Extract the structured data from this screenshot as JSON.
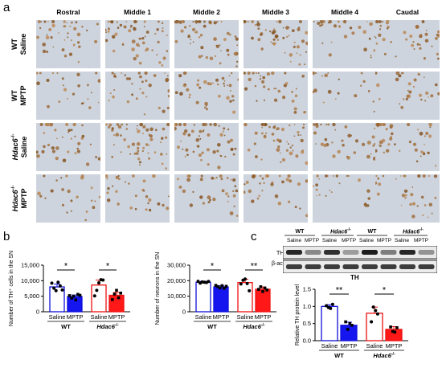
{
  "panel_a": {
    "letter": "a",
    "columns": [
      "Rostral",
      "Middle 1",
      "Middle 2",
      "Middle 3",
      "Middle 4",
      "Caudal"
    ],
    "rows": [
      {
        "line1": "WT",
        "line2": "Saline"
      },
      {
        "line1": "WT",
        "line2": "MPTP"
      },
      {
        "line1": "Hdac6",
        "sup": "-/-",
        "line2": "Saline"
      },
      {
        "line1": "Hdac6",
        "sup": "-/-",
        "line2": "MPTP"
      }
    ]
  },
  "panel_b": {
    "letter": "b"
  },
  "panel_c": {
    "letter": "c",
    "wb_groups": [
      {
        "name": "WT",
        "sup": ""
      },
      {
        "name": "Hdac6",
        "sup": "-/-"
      },
      {
        "name": "WT",
        "sup": ""
      },
      {
        "name": "Hdac6",
        "sup": "-/-"
      }
    ],
    "wb_lanes": [
      "Saline",
      "MPTP",
      "Saline",
      "MPTP",
      "Saline",
      "MPTP",
      "Saline",
      "MPTP"
    ],
    "wb_bands": [
      "TH",
      "β-actin"
    ],
    "wb_caption": "TH"
  },
  "chart_data": [
    {
      "type": "bar",
      "ylabel": "Number of TH⁺ cells in the SN",
      "ylim": [
        0,
        15000
      ],
      "yticks": [
        "0",
        "5,000",
        "10,000",
        "15,000"
      ],
      "categories": [
        "Saline",
        "MPTP",
        "Saline",
        "MPTP"
      ],
      "groups": [
        {
          "name": "WT",
          "sup": ""
        },
        {
          "name": "Hdac6",
          "sup": "-/-"
        }
      ],
      "values": [
        8000,
        4900,
        8600,
        5300
      ],
      "errors": [
        900,
        500,
        1600,
        900
      ],
      "points": [
        [
          9200,
          7600,
          6800,
          9500,
          8300,
          7000
        ],
        [
          5200,
          4400,
          5000,
          3800,
          5600,
          5300
        ],
        [
          5100,
          6900,
          9300,
          10300,
          10200
        ],
        [
          3900,
          5700,
          6900,
          4500,
          6000
        ]
      ],
      "significance": [
        {
          "pair": [
            0,
            1
          ],
          "label": "*"
        },
        {
          "pair": [
            2,
            3
          ],
          "label": "*"
        }
      ]
    },
    {
      "type": "bar",
      "ylabel": "Number of neurons in the SN",
      "ylim": [
        0,
        30000
      ],
      "yticks": [
        "0",
        "10,000",
        "20,000",
        "30,000"
      ],
      "categories": [
        "Saline",
        "MPTP",
        "Saline",
        "MPTP"
      ],
      "groups": [
        {
          "name": "WT",
          "sup": ""
        },
        {
          "name": "Hdac6",
          "sup": "-/-"
        }
      ],
      "values": [
        19000,
        16000,
        18800,
        14500
      ],
      "errors": [
        600,
        700,
        2100,
        1500
      ],
      "points": [
        [
          19600,
          18400,
          19200,
          19000,
          18800,
          19500
        ],
        [
          17000,
          16200,
          15300,
          16800,
          15100,
          16400
        ],
        [
          17900,
          20300,
          21100,
          18200,
          13500
        ],
        [
          14400,
          16100,
          13000,
          15300,
          14000
        ]
      ],
      "significance": [
        {
          "pair": [
            0,
            1
          ],
          "label": "*"
        },
        {
          "pair": [
            2,
            3
          ],
          "label": "**"
        }
      ]
    },
    {
      "type": "bar",
      "ylabel": "Relative TH protein level",
      "ylim": [
        0,
        1.5
      ],
      "yticks": [
        "0.0",
        "0.5",
        "1.0",
        "1.5"
      ],
      "categories": [
        "Saline",
        "MPTP",
        "Saline",
        "MPTP"
      ],
      "groups": [
        {
          "name": "WT",
          "sup": ""
        },
        {
          "name": "Hdac6",
          "sup": "-/-"
        }
      ],
      "values": [
        1.0,
        0.45,
        0.8,
        0.33
      ],
      "errors": [
        0.05,
        0.09,
        0.18,
        0.08
      ],
      "points": [
        [
          1.02,
          0.97,
          0.94,
          1.06
        ],
        [
          0.55,
          0.33,
          0.5,
          0.45
        ],
        [
          0.55,
          0.98,
          0.88,
          0.78
        ],
        [
          0.4,
          0.27,
          0.25,
          0.38
        ]
      ],
      "significance": [
        {
          "pair": [
            0,
            1
          ],
          "label": "**"
        },
        {
          "pair": [
            2,
            3
          ],
          "label": "*"
        }
      ]
    }
  ],
  "colors": {
    "wt_saline": "#ffffff",
    "wt_saline_edge": "#1010d8",
    "wt_mptp": "#1515f0",
    "ko_saline": "#ffffff",
    "ko_saline_edge": "#ee1111",
    "ko_mptp": "#ff1818",
    "tissue": "#cdd3dc",
    "stain": "#8a4a1c"
  }
}
